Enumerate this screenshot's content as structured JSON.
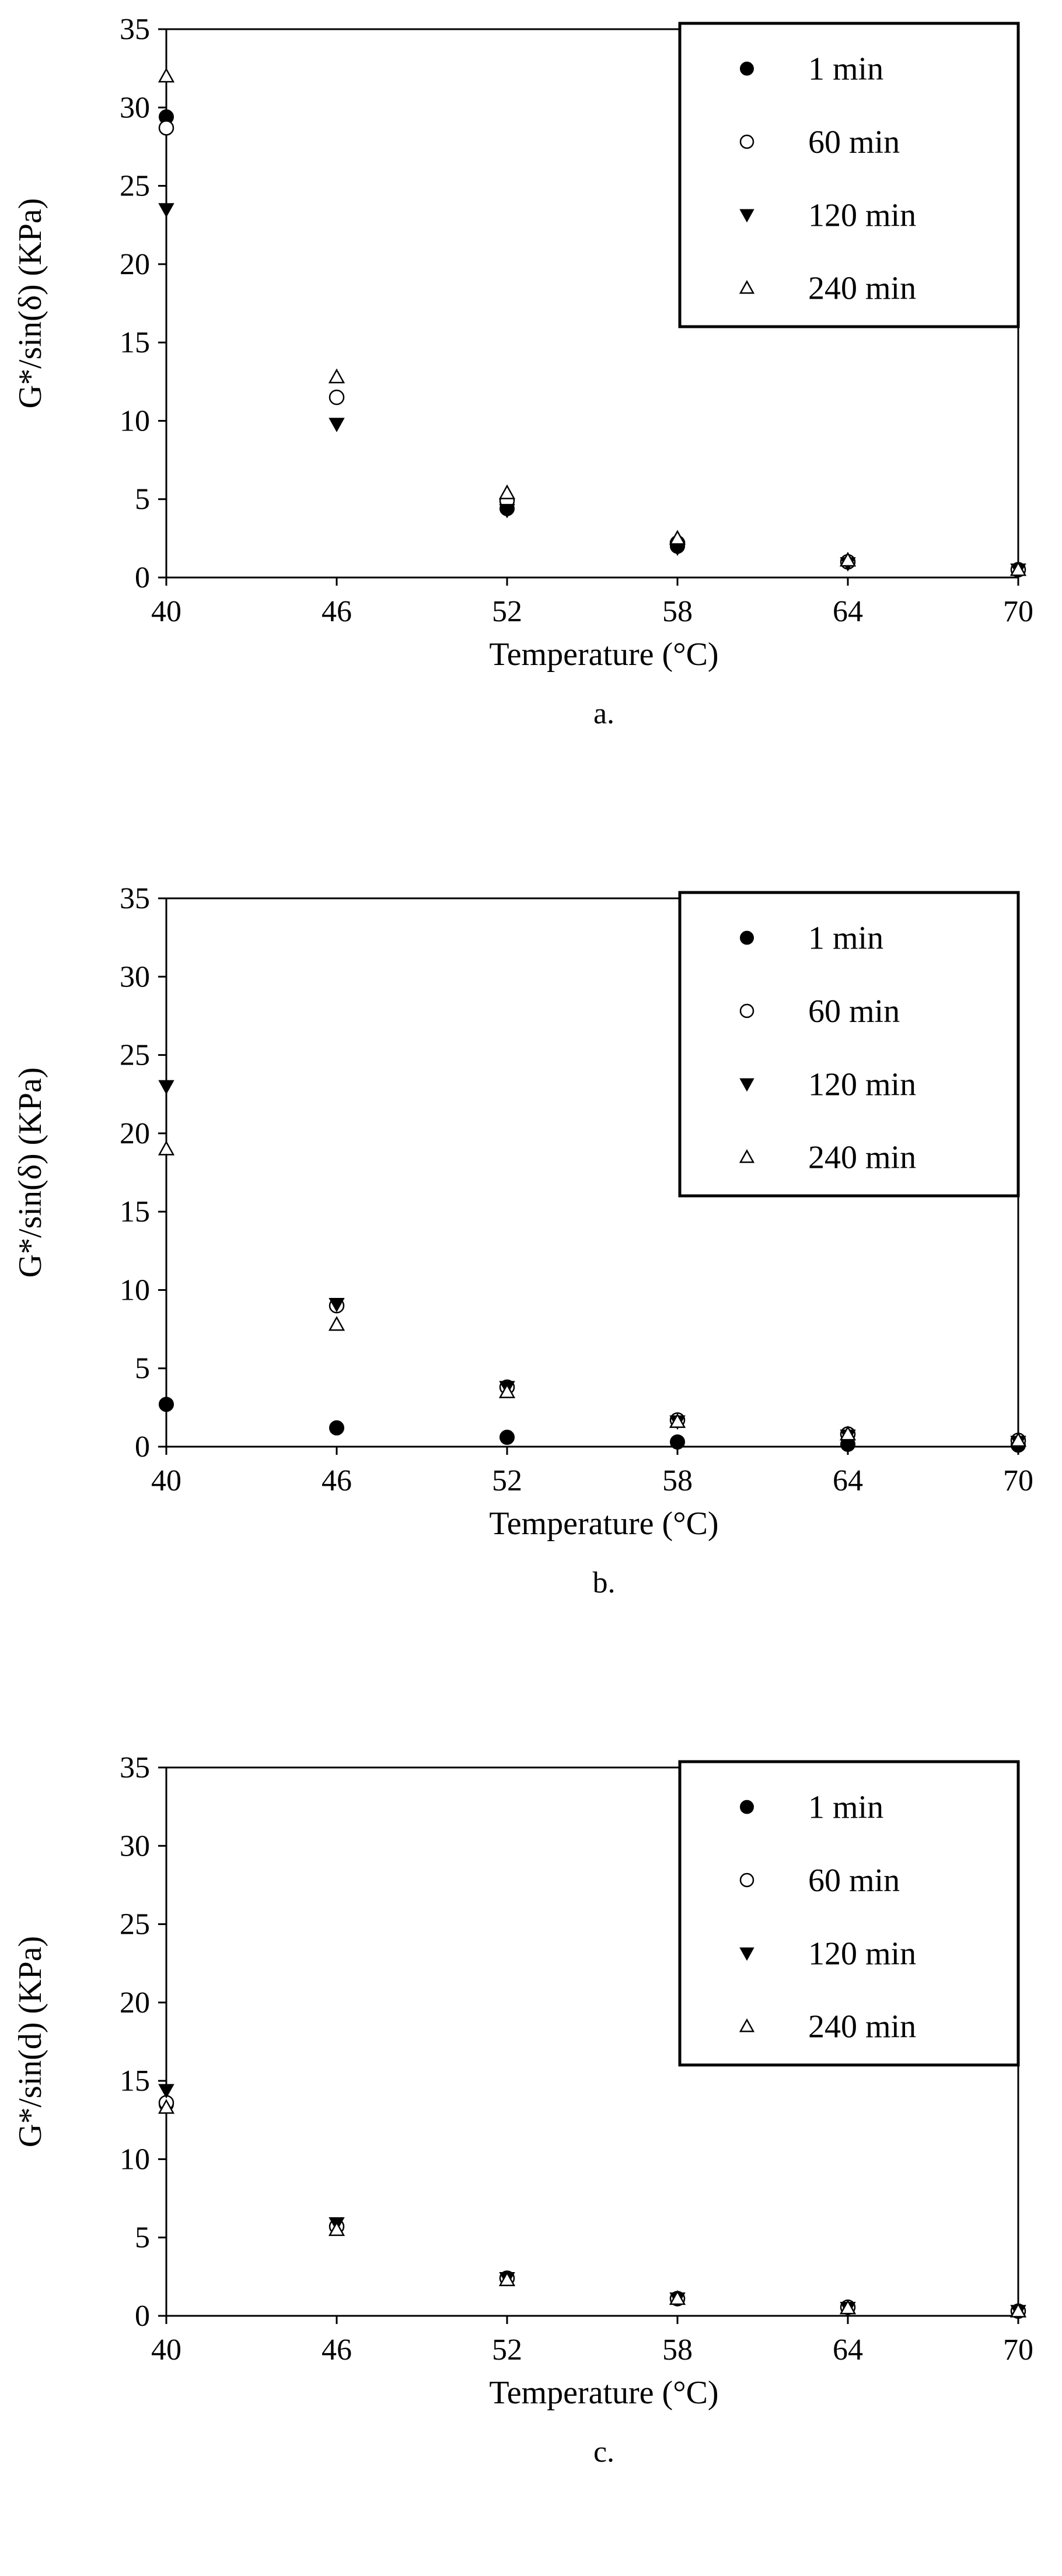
{
  "chart_data": [
    {
      "type": "scatter",
      "panel_label": "a.",
      "xlabel": "Temperature (°C)",
      "ylabel": "G*/sin(δ) (KPa)",
      "x": [
        40,
        46,
        52,
        58,
        64,
        70
      ],
      "xticks": [
        "40",
        "46",
        "52",
        "58",
        "64",
        "70"
      ],
      "yticks": [
        "0",
        "5",
        "10",
        "15",
        "20",
        "25",
        "30",
        "35"
      ],
      "xlim": [
        40,
        70
      ],
      "ylim": [
        0,
        35
      ],
      "grid": false,
      "legend_position": "top-right",
      "series": [
        {
          "name": "1 min",
          "marker": "filled-circle",
          "values": [
            29.4,
            11.5,
            4.4,
            2.0,
            1.0,
            0.5
          ]
        },
        {
          "name": "60 min",
          "marker": "open-circle",
          "values": [
            28.7,
            11.5,
            4.9,
            2.2,
            1.0,
            0.5
          ]
        },
        {
          "name": "120 min",
          "marker": "filled-triangle-down",
          "values": [
            23.5,
            9.8,
            4.3,
            1.9,
            0.9,
            0.5
          ]
        },
        {
          "name": "240 min",
          "marker": "open-triangle-up",
          "values": [
            32.0,
            12.8,
            5.4,
            2.5,
            1.1,
            0.5
          ]
        }
      ]
    },
    {
      "type": "scatter",
      "panel_label": "b.",
      "xlabel": "Temperature (°C)",
      "ylabel": "G*/sin(δ) (KPa)",
      "x": [
        40,
        46,
        52,
        58,
        64,
        70
      ],
      "xticks": [
        "40",
        "46",
        "52",
        "58",
        "64",
        "70"
      ],
      "yticks": [
        "0",
        "5",
        "10",
        "15",
        "20",
        "25",
        "30",
        "35"
      ],
      "xlim": [
        40,
        70
      ],
      "ylim": [
        0,
        35
      ],
      "grid": false,
      "legend_position": "top-right",
      "series": [
        {
          "name": "1 min",
          "marker": "filled-circle",
          "values": [
            2.7,
            1.2,
            0.6,
            0.3,
            0.15,
            0.1
          ]
        },
        {
          "name": "60 min",
          "marker": "open-circle",
          "values": [
            null,
            9.0,
            3.8,
            1.7,
            0.8,
            0.4
          ]
        },
        {
          "name": "120 min",
          "marker": "filled-triangle-down",
          "values": [
            23.0,
            9.1,
            3.8,
            1.6,
            0.7,
            0.3
          ]
        },
        {
          "name": "240 min",
          "marker": "open-triangle-up",
          "values": [
            19.0,
            7.8,
            3.5,
            1.6,
            0.8,
            0.4
          ]
        }
      ]
    },
    {
      "type": "scatter",
      "panel_label": "c.",
      "xlabel": "Temperature (°C)",
      "ylabel": "G*/sin(d) (KPa)",
      "x": [
        40,
        46,
        52,
        58,
        64,
        70
      ],
      "xticks": [
        "40",
        "46",
        "52",
        "58",
        "64",
        "70"
      ],
      "yticks": [
        "0",
        "5",
        "10",
        "15",
        "20",
        "25",
        "30",
        "35"
      ],
      "xlim": [
        40,
        70
      ],
      "ylim": [
        0,
        35
      ],
      "grid": false,
      "legend_position": "top-right",
      "series": [
        {
          "name": "1 min",
          "marker": "filled-circle",
          "values": [
            13.5,
            5.7,
            2.4,
            1.1,
            0.55,
            0.3
          ]
        },
        {
          "name": "60 min",
          "marker": "open-circle",
          "values": [
            13.6,
            5.7,
            2.4,
            1.1,
            0.55,
            0.3
          ]
        },
        {
          "name": "120 min",
          "marker": "filled-triangle-down",
          "values": [
            14.4,
            5.9,
            2.4,
            1.1,
            0.5,
            0.3
          ]
        },
        {
          "name": "240 min",
          "marker": "open-triangle-up",
          "values": [
            13.3,
            5.5,
            2.3,
            1.1,
            0.5,
            0.3
          ]
        }
      ]
    }
  ]
}
